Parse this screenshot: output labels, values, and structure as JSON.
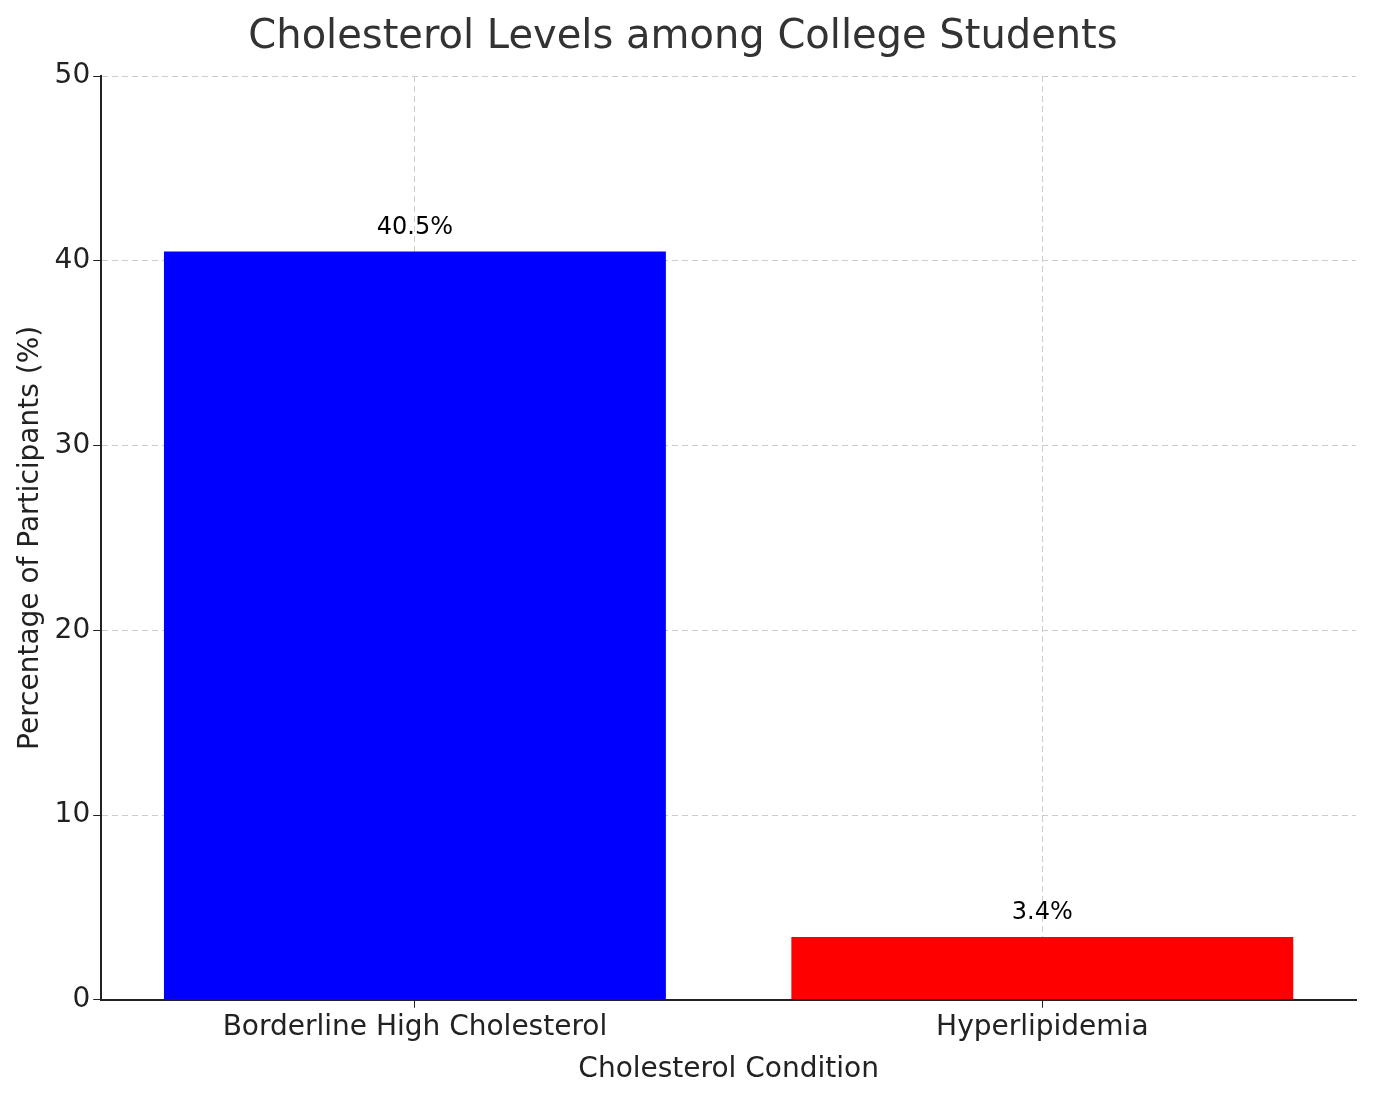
{
  "chart_data": {
    "type": "bar",
    "title": "Cholesterol Levels among College Students",
    "x_label": "Cholesterol Condition",
    "y_label": "Percentage of Participants (%)",
    "categories": [
      "Borderline High Cholesterol",
      "Hyperlipidemia"
    ],
    "values": [
      40.5,
      3.4
    ],
    "value_labels": [
      "40.5%",
      "3.4%"
    ],
    "colors": [
      "#0000ff",
      "#ff0000"
    ],
    "ylim": [
      0,
      50
    ],
    "yticks": [
      0,
      10,
      20,
      30,
      40,
      50
    ],
    "grid": true,
    "data_labels": true
  }
}
